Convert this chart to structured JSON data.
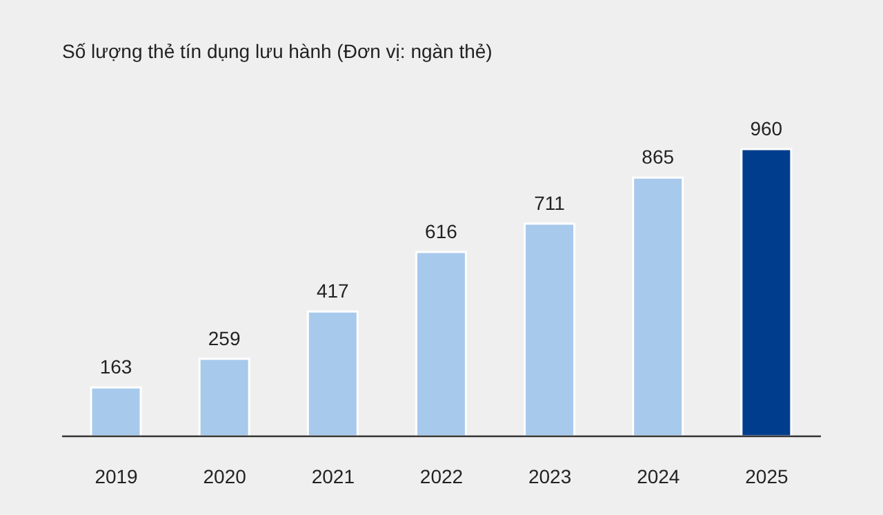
{
  "chart_data": {
    "type": "bar",
    "title": "Số lượng thẻ tín dụng lưu hành (Đơn vị: ngàn thẻ)",
    "categories": [
      "2019",
      "2020",
      "2021",
      "2022",
      "2023",
      "2024",
      "2025"
    ],
    "values": [
      163,
      259,
      417,
      616,
      711,
      865,
      960
    ],
    "colors": [
      "#a7c9ec",
      "#a7c9ec",
      "#a7c9ec",
      "#a7c9ec",
      "#a7c9ec",
      "#a7c9ec",
      "#003d8c"
    ],
    "data_labels": true,
    "grid": false,
    "legend": false
  }
}
